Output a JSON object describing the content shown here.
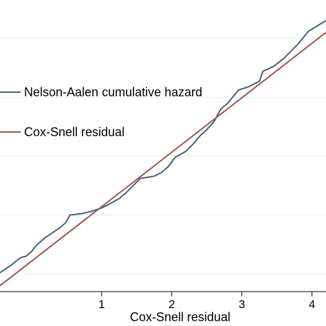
{
  "chart_data": {
    "type": "line",
    "xlabel": "Cox-Snell residual",
    "ylabel": "",
    "xlim": [
      -0.45,
      4.2
    ],
    "ylim": [
      -0.3,
      4.65
    ],
    "x_ticks": [
      1,
      2,
      3,
      4
    ],
    "x_tick_labels": [
      "1",
      "2",
      "3",
      "4"
    ],
    "y_grid": [
      0,
      1,
      2,
      3,
      4
    ],
    "grid": true,
    "legend_position": "upper-left",
    "series": [
      {
        "name": "Nelson-Aalen cumulative hazard",
        "color": "#3f5f7f",
        "x": [
          -0.45,
          -0.38,
          -0.3,
          -0.22,
          -0.15,
          -0.08,
          0.0,
          0.05,
          0.1,
          0.2,
          0.3,
          0.4,
          0.48,
          0.55,
          0.7,
          0.85,
          1.0,
          1.1,
          1.25,
          1.35,
          1.55,
          1.75,
          1.85,
          1.95,
          2.05,
          2.2,
          2.3,
          2.4,
          2.5,
          2.6,
          2.7,
          2.8,
          2.95,
          3.1,
          3.25,
          3.3,
          3.45,
          3.6,
          3.8,
          3.95,
          4.2
        ],
        "y": [
          0.02,
          0.08,
          0.14,
          0.22,
          0.28,
          0.3,
          0.38,
          0.46,
          0.52,
          0.62,
          0.7,
          0.78,
          0.86,
          1.0,
          1.02,
          1.06,
          1.12,
          1.18,
          1.28,
          1.38,
          1.62,
          1.66,
          1.72,
          1.82,
          1.98,
          2.08,
          2.2,
          2.34,
          2.45,
          2.58,
          2.8,
          2.9,
          3.12,
          3.18,
          3.27,
          3.44,
          3.52,
          3.66,
          3.9,
          4.12,
          4.3
        ]
      },
      {
        "name": "Cox-Snell residual",
        "color": "#a0524b",
        "x": [
          -0.45,
          4.2
        ],
        "y": [
          -0.2,
          4.1
        ]
      }
    ]
  }
}
